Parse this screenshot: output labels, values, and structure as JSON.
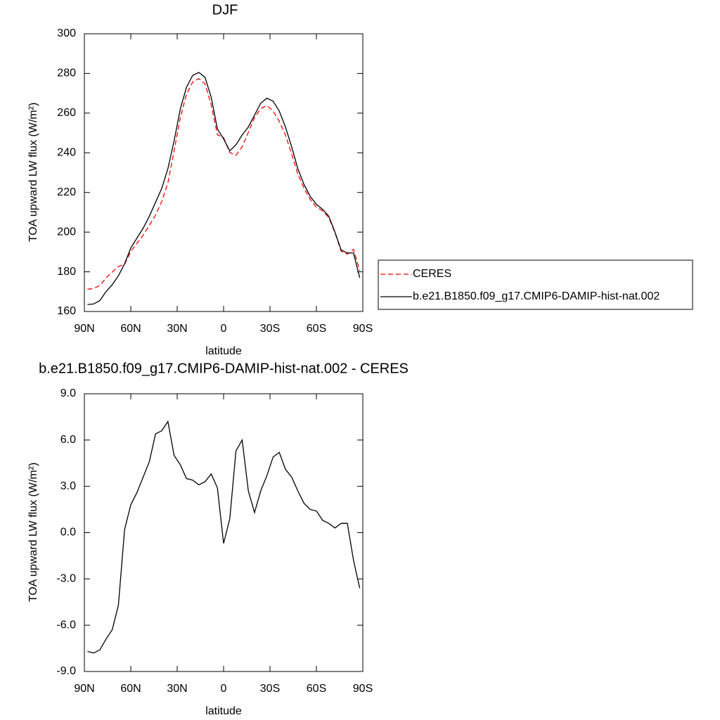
{
  "chart_data": [
    {
      "type": "line",
      "title": "DJF",
      "xlabel": "latitude",
      "ylabel": "TOA upward LW flux (W/m²)",
      "x": [
        88,
        84,
        80,
        76,
        72,
        68,
        64,
        60,
        56,
        52,
        48,
        44,
        40,
        36,
        32,
        28,
        24,
        20,
        16,
        12,
        8,
        4,
        0,
        -4,
        -8,
        -12,
        -16,
        -20,
        -24,
        -28,
        -32,
        -36,
        -40,
        -44,
        -48,
        -52,
        -56,
        -60,
        -64,
        -68,
        -72,
        -76,
        -80,
        -84,
        -88
      ],
      "xlim": [
        90,
        -90
      ],
      "xticks": [
        {
          "value": 90,
          "label": "90N"
        },
        {
          "value": 60,
          "label": "60N"
        },
        {
          "value": 30,
          "label": "30N"
        },
        0,
        {
          "value": -30,
          "label": "30S"
        },
        {
          "value": -60,
          "label": "60S"
        },
        {
          "value": -90,
          "label": "90S"
        }
      ],
      "ylim": [
        160,
        300
      ],
      "yticks": [
        160,
        180,
        200,
        220,
        240,
        260,
        280,
        300
      ],
      "series": [
        {
          "name": "CERES",
          "color": "#ff0000",
          "dash": true,
          "values": [
            171.2,
            171.6,
            173.1,
            176.9,
            179.8,
            182.7,
            183.8,
            190.2,
            194.4,
            198.4,
            203.4,
            208.6,
            215.4,
            224.8,
            241,
            257.6,
            269.5,
            275.6,
            277.4,
            274.7,
            264.2,
            249.1,
            247.7,
            240.1,
            238.7,
            243,
            250.3,
            257.7,
            262.3,
            263.8,
            261.1,
            255.8,
            248.9,
            239.4,
            229.3,
            222.1,
            216.5,
            212.6,
            210.7,
            207.4,
            199.7,
            190.4,
            188.9,
            191.3,
            180.6
          ]
        },
        {
          "name": "b.e21.B1850.f09_g17.CMIP6-DAMIP-hist-nat.002",
          "color": "#000000",
          "dash": false,
          "values": [
            163.5,
            163.8,
            165.5,
            170,
            173.5,
            178,
            184,
            192,
            197,
            202,
            208,
            215,
            222,
            232,
            246,
            262,
            273,
            279,
            280.5,
            278,
            268,
            252,
            247,
            241,
            244,
            249,
            253,
            259,
            265,
            267.5,
            266,
            261,
            253,
            243,
            232,
            224,
            218,
            214,
            211.5,
            208,
            200,
            191,
            189.5,
            189.5,
            177
          ]
        }
      ]
    },
    {
      "type": "line",
      "title": "b.e21.B1850.f09_g17.CMIP6-DAMIP-hist-nat.002 - CERES",
      "xlabel": "latitude",
      "ylabel": "TOA upward LW flux (W/m²)",
      "x": [
        88,
        84,
        80,
        76,
        72,
        68,
        64,
        60,
        56,
        52,
        48,
        44,
        40,
        36,
        32,
        28,
        24,
        20,
        16,
        12,
        8,
        4,
        0,
        -4,
        -8,
        -12,
        -16,
        -20,
        -24,
        -28,
        -32,
        -36,
        -40,
        -44,
        -48,
        -52,
        -56,
        -60,
        -64,
        -68,
        -72,
        -76,
        -80,
        -84,
        -88
      ],
      "xlim": [
        90,
        -90
      ],
      "xticks": [
        {
          "value": 90,
          "label": "90N"
        },
        {
          "value": 60,
          "label": "60N"
        },
        {
          "value": 30,
          "label": "30N"
        },
        0,
        {
          "value": -30,
          "label": "30S"
        },
        {
          "value": -60,
          "label": "60S"
        },
        {
          "value": -90,
          "label": "90S"
        }
      ],
      "ylim": [
        -9,
        9
      ],
      "yticks": [
        {
          "value": -9,
          "label": "-9.0"
        },
        {
          "value": -6,
          "label": "-6.0"
        },
        {
          "value": -3,
          "label": "-3.0"
        },
        {
          "value": 0,
          "label": "0.0"
        },
        {
          "value": 3,
          "label": "3.0"
        },
        {
          "value": 6,
          "label": "6.0"
        },
        {
          "value": 9,
          "label": "9.0"
        }
      ],
      "color": "#000000",
      "values": [
        -7.7,
        -7.8,
        -7.6,
        -6.9,
        -6.3,
        -4.7,
        0.2,
        1.8,
        2.6,
        3.6,
        4.6,
        6.4,
        6.6,
        7.2,
        5.0,
        4.4,
        3.5,
        3.4,
        3.1,
        3.3,
        3.8,
        2.9,
        -0.7,
        0.9,
        5.3,
        6.0,
        2.7,
        1.3,
        2.7,
        3.7,
        4.9,
        5.2,
        4.1,
        3.6,
        2.7,
        1.9,
        1.5,
        1.4,
        0.8,
        0.6,
        0.3,
        0.6,
        0.6,
        -1.8,
        -3.6
      ]
    }
  ]
}
